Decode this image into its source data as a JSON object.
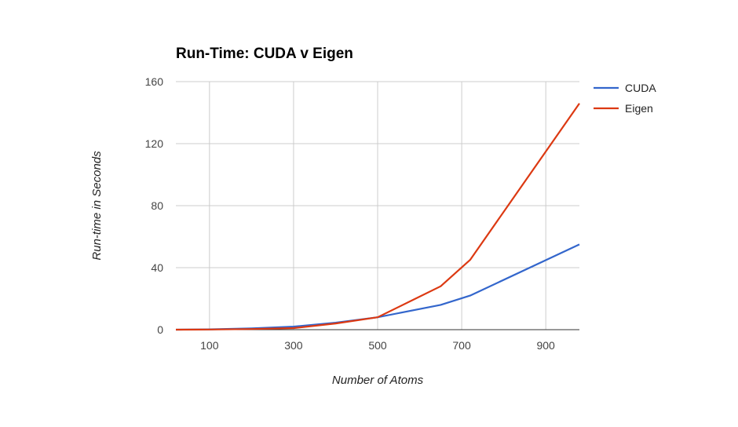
{
  "chart_data": {
    "type": "line",
    "title": "Run-Time: CUDA v Eigen",
    "xlabel": "Number of Atoms",
    "ylabel": "Run-time in Seconds",
    "xlim": [
      20,
      980
    ],
    "ylim": [
      0,
      160
    ],
    "x_ticks": [
      100,
      300,
      500,
      700,
      900
    ],
    "y_ticks": [
      0,
      40,
      80,
      120,
      160
    ],
    "grid": true,
    "legend_position": "right",
    "series": [
      {
        "name": "CUDA",
        "color": "#3366cc",
        "points": [
          [
            20,
            0
          ],
          [
            100,
            0.2
          ],
          [
            200,
            0.8
          ],
          [
            300,
            2
          ],
          [
            400,
            4.5
          ],
          [
            500,
            8
          ],
          [
            650,
            16
          ],
          [
            720,
            22
          ],
          [
            980,
            55
          ]
        ]
      },
      {
        "name": "Eigen",
        "color": "#dc3912",
        "points": [
          [
            20,
            0
          ],
          [
            100,
            0.1
          ],
          [
            200,
            0.4
          ],
          [
            300,
            1
          ],
          [
            400,
            4
          ],
          [
            500,
            8
          ],
          [
            650,
            28
          ],
          [
            720,
            45
          ],
          [
            980,
            146
          ]
        ]
      }
    ]
  }
}
